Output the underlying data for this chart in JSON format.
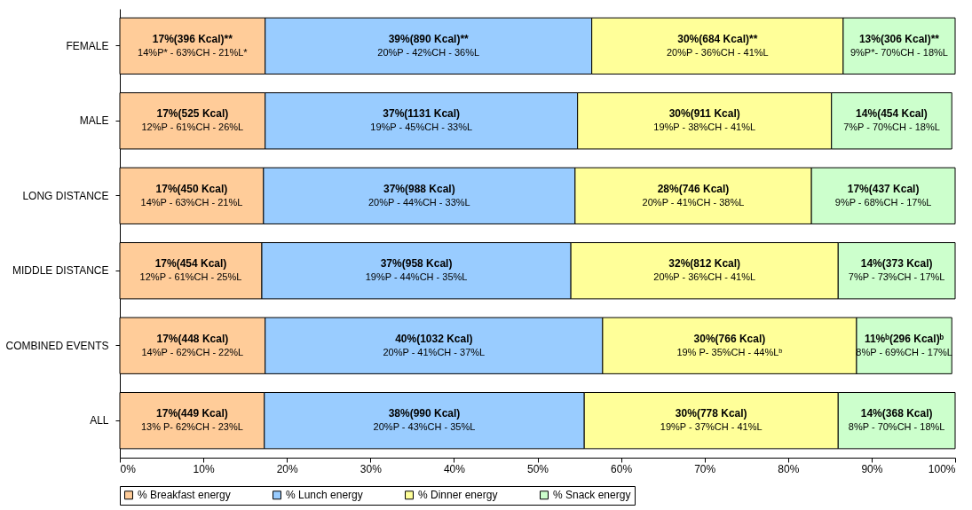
{
  "chart_data": {
    "type": "bar",
    "orientation": "horizontal",
    "stacked": true,
    "categories": [
      "FEMALE",
      "MALE",
      "LONG DISTANCE",
      "MIDDLE DISTANCE",
      "COMBINED EVENTS",
      "ALL"
    ],
    "series": [
      {
        "name": "% Breakfast energy",
        "color": "#ffcc99",
        "values": [
          17.4,
          17.4,
          17.2,
          17.0,
          17.4,
          17.3
        ],
        "value_labels": [
          "17%(396 Kcal)**\n14%P* - 63%CH - 21%L*",
          "17%(525 Kcal)\n12%P - 61%CH - 26%L",
          "17%(450 Kcal)\n14%P - 63%CH - 21%L",
          "17%(454 Kcal)\n12%P - 61%CH - 25%L",
          "17%(448 Kcal)\n14%P - 62%CH - 22%L",
          "17%(449 Kcal)\n13% P- 62%CH - 23%L"
        ]
      },
      {
        "name": "% Lunch energy",
        "color": "#99ccff",
        "values": [
          39.1,
          37.4,
          37.3,
          37.0,
          40.4,
          38.3
        ],
        "value_labels": [
          "39%(890 Kcal)**\n20%P - 42%CH - 36%L",
          "37%(1131 Kcal)\n19%P - 45%CH - 33%L",
          "37%(988 Kcal)\n20%P - 44%CH - 33%L",
          "37%(958 Kcal)\n19%P - 44%CH - 35%L",
          "40%(1032 Kcal)\n20%P - 41%CH - 37%L",
          "38%(990 Kcal)\n20%P - 43%CH - 35%L"
        ]
      },
      {
        "name": "% Dinner energy",
        "color": "#ffff99",
        "values": [
          30.1,
          30.4,
          28.3,
          32.0,
          30.4,
          30.4
        ],
        "value_labels": [
          "30%(684 Kcal)**\n20%P - 36%CH - 41%L",
          "30%(911 Kcal)\n19%P - 38%CH - 41%L",
          "28%(746 Kcal)\n20%P - 41%CH - 38%L",
          "32%(812 Kcal)\n20%P - 36%CH - 41%L",
          "30%(766 Kcal)\n19% P- 35%CH - 44%Lᵇ",
          "30%(778 Kcal)\n19%P - 37%CH - 41%L"
        ]
      },
      {
        "name": "% Snack energy",
        "color": "#ccffcc",
        "values": [
          13.4,
          14.4,
          17.2,
          14.0,
          11.4,
          14.0
        ],
        "value_labels": [
          "13%(306 Kcal)**\n9%P*- 70%CH - 18%L",
          "14%(454 Kcal)\n7%P - 70%CH - 18%L",
          "17%(437 Kcal)\n9%P - 68%CH - 17%L",
          "14%(373 Kcal)\n7%P - 73%CH - 17%L",
          "11%ᵇ(296 Kcal)ᵇ\n8%P - 69%CH - 17%L",
          "14%(368 Kcal)\n8%P - 70%CH - 18%L"
        ]
      }
    ],
    "xlim": [
      0,
      100
    ],
    "xticks": [
      {
        "value": 0,
        "label": "0%"
      },
      {
        "value": 10,
        "label": "10%"
      },
      {
        "value": 20,
        "label": "20%"
      },
      {
        "value": 30,
        "label": "30%"
      },
      {
        "value": 40,
        "label": "40%"
      },
      {
        "value": 50,
        "label": "50%"
      },
      {
        "value": 60,
        "label": "60%"
      },
      {
        "value": 70,
        "label": "70%"
      },
      {
        "value": 80,
        "label": "80%"
      },
      {
        "value": 90,
        "label": "90%"
      },
      {
        "value": 100,
        "label": "100%"
      }
    ],
    "grid": false,
    "legend": "bottom"
  }
}
